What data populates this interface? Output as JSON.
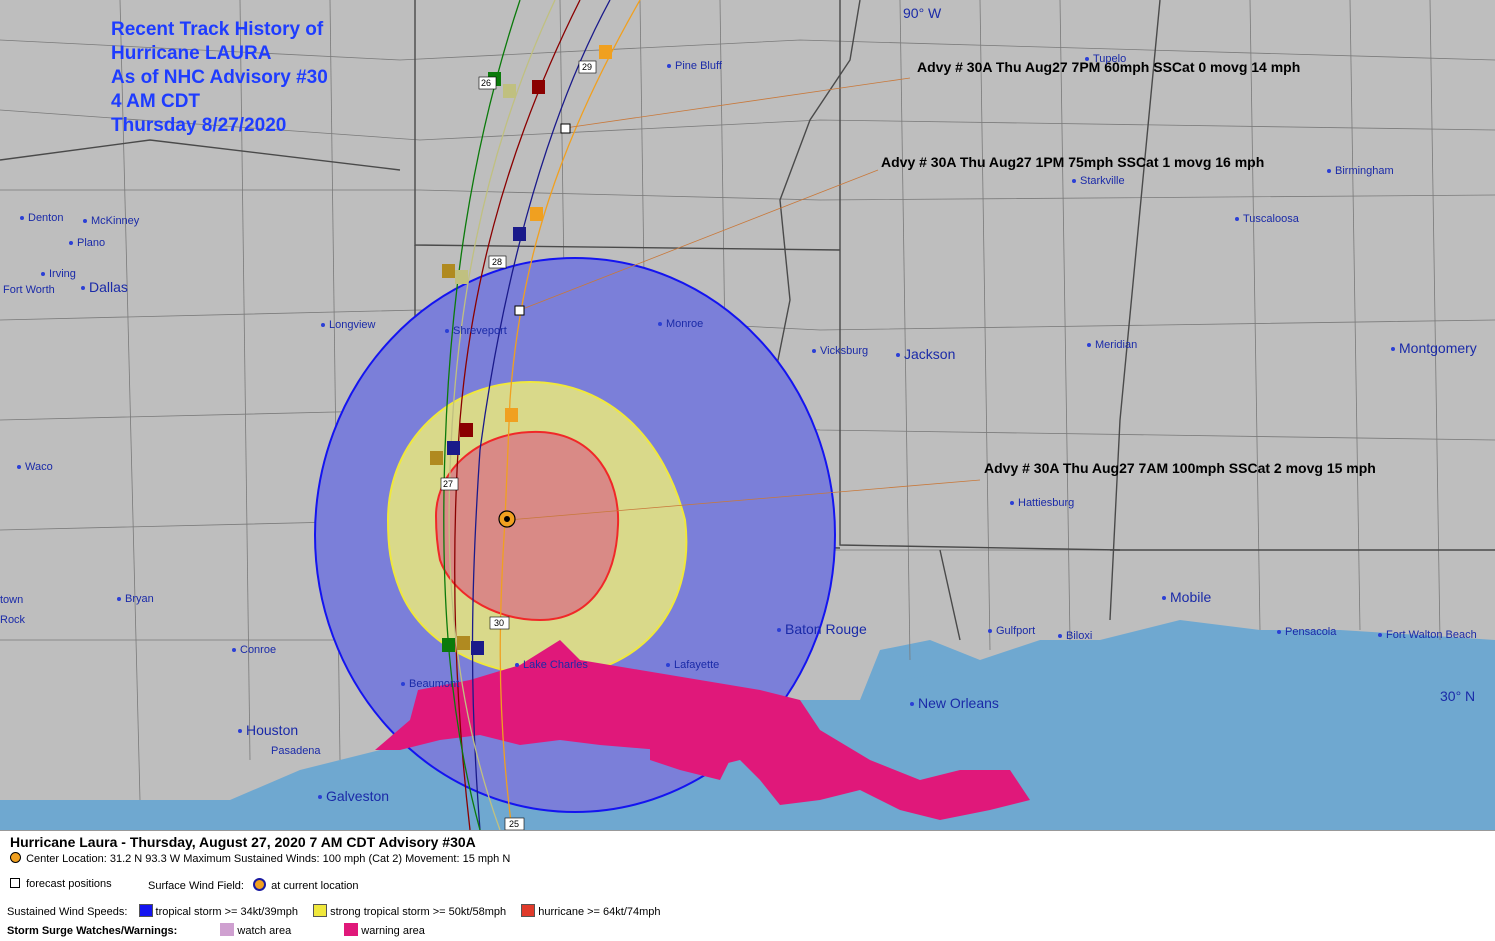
{
  "map": {
    "title_lines": [
      "Recent Track History of",
      "Hurricane LAURA",
      "As of NHC Advisory #30",
      "4 AM CDT",
      "Thursday 8/27/2020"
    ],
    "longitude_label": "90° W",
    "latitude_label": "30° N",
    "advisories": [
      "Advy # 30A Thu Aug27 7PM  60mph SSCat 0 movg 14 mph",
      "Advy # 30A Thu Aug27 1PM  75mph SSCat 1 movg 16 mph",
      "Advy # 30A Thu Aug27 7AM  100mph SSCat 2 movg 15 mph"
    ],
    "track_numbers": [
      "26",
      "29",
      "28",
      "27",
      "30",
      "25"
    ],
    "cities": [
      {
        "name": "Pine Bluff"
      },
      {
        "name": "Tupelo"
      },
      {
        "name": "Denton"
      },
      {
        "name": "McKinney"
      },
      {
        "name": "Plano"
      },
      {
        "name": "Irving"
      },
      {
        "name": "Fort Worth"
      },
      {
        "name": "Dallas"
      },
      {
        "name": "Starkville"
      },
      {
        "name": "Birmingham"
      },
      {
        "name": "Tuscaloosa"
      },
      {
        "name": "Longview"
      },
      {
        "name": "Shreveport"
      },
      {
        "name": "Monroe"
      },
      {
        "name": "Vicksburg"
      },
      {
        "name": "Jackson"
      },
      {
        "name": "Meridian"
      },
      {
        "name": "Montgomery"
      },
      {
        "name": "Waco"
      },
      {
        "name": "Hattiesburg"
      },
      {
        "name": "Bryan"
      },
      {
        "name": "Mobile"
      },
      {
        "name": "Conroe"
      },
      {
        "name": "Baton Rouge"
      },
      {
        "name": "Lake Charles"
      },
      {
        "name": "Lafayette"
      },
      {
        "name": "Gulfport"
      },
      {
        "name": "Biloxi"
      },
      {
        "name": "Pensacola"
      },
      {
        "name": "Fort Walton Beach"
      },
      {
        "name": "Beaumont"
      },
      {
        "name": "New Orleans"
      },
      {
        "name": "Houston"
      },
      {
        "name": "Pasadena"
      },
      {
        "name": "Galveston"
      },
      {
        "name": "town"
      },
      {
        "name": "Rock"
      }
    ]
  },
  "legend": {
    "headline": "Hurricane Laura  -  Thursday, August 27, 2020  7 AM CDT   Advisory #30A",
    "center_info": "Center Location: 31.2 N  93.3 W   Maximum Sustained Winds: 100 mph (Cat 2) Movement: 15 mph N",
    "forecast_positions": "forecast positions",
    "surface_wind_field_label": "Surface Wind Field:",
    "current_location": "at current location",
    "sustained_label": "Sustained Wind Speeds:",
    "ts_label": "tropical storm >= 34kt/39mph",
    "sts_label": "strong tropical storm >= 50kt/58mph",
    "hu_label": "hurricane >= 64kt/74mph",
    "surge_label": "Storm Surge Watches/Warnings:",
    "watch_label": "watch area",
    "warning_label": "warning area"
  },
  "colors": {
    "land": "#bebebe",
    "water": "#6fa8d0",
    "ts_wind": "#7b7fd9",
    "sts_wind": "#d9d98a",
    "hu_wind": "#d98a86",
    "ts_border": "#1414f0",
    "sts_border": "#f0e83c",
    "hu_border": "#f02828",
    "surge_warning": "#e0187a",
    "surge_watch": "#cfa0d0",
    "title": "#1e3cff"
  }
}
